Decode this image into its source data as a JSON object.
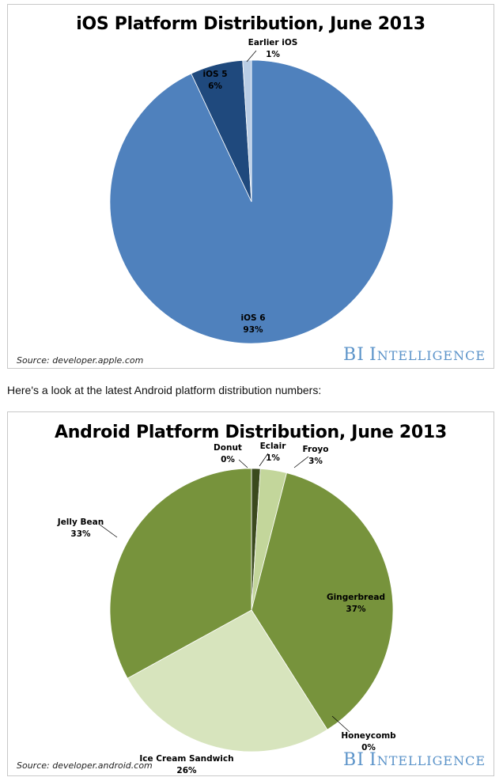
{
  "interlude_text": "Here's a look at the latest Android platform distribution numbers:",
  "chart_data": [
    {
      "type": "pie",
      "title": "iOS Platform Distribution, June 2013",
      "source": "Source: developer.apple.com",
      "brand": {
        "first": "BI",
        "rest_initial": "I",
        "rest": "NTELLIGENCE"
      },
      "slices": [
        {
          "label": "iOS 6",
          "value": 93,
          "display": "93%",
          "color": "#4f81bd"
        },
        {
          "label": "iOS 5",
          "value": 6,
          "display": "6%",
          "color": "#1f497d"
        },
        {
          "label": "Earlier iOS",
          "value": 1,
          "display": "1%",
          "color": "#b9cde5"
        }
      ]
    },
    {
      "type": "pie",
      "title": "Android Platform Distribution, June 2013",
      "source": "Source: developer.android.com",
      "brand": {
        "first": "BI",
        "rest_initial": "I",
        "rest": "NTELLIGENCE"
      },
      "slices": [
        {
          "label": "Donut",
          "value": 0,
          "display": "0%",
          "color": "#4f6228"
        },
        {
          "label": "Eclair",
          "value": 1,
          "display": "1%",
          "color": "#3b4a1e"
        },
        {
          "label": "Froyo",
          "value": 3,
          "display": "3%",
          "color": "#c3d69b"
        },
        {
          "label": "Gingerbread",
          "value": 37,
          "display": "37%",
          "color": "#77933c"
        },
        {
          "label": "Honeycomb",
          "value": 0,
          "display": "0%",
          "color": "#4f6228"
        },
        {
          "label": "Ice Cream Sandwich",
          "value": 26,
          "display": "26%",
          "color": "#d7e4bd"
        },
        {
          "label": "Jelly Bean",
          "value": 33,
          "display": "33%",
          "color": "#77933c"
        }
      ]
    }
  ]
}
